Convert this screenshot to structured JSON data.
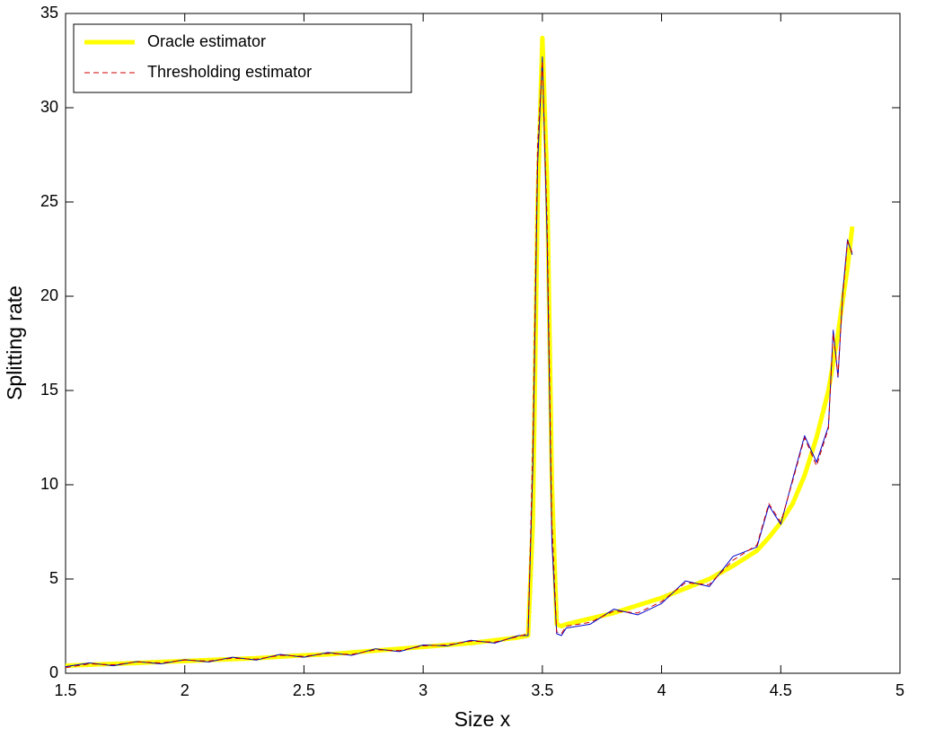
{
  "chart_data": {
    "type": "line",
    "x_label": "Size x",
    "y_label": "Splitting rate",
    "x": [
      1.5,
      1.6,
      1.7,
      1.8,
      1.9,
      2.0,
      2.1,
      2.2,
      2.3,
      2.4,
      2.5,
      2.6,
      2.7,
      2.8,
      2.9,
      3.0,
      3.1,
      3.2,
      3.3,
      3.4,
      3.44,
      3.46,
      3.48,
      3.5,
      3.52,
      3.54,
      3.56,
      3.58,
      3.6,
      3.7,
      3.8,
      3.9,
      4.0,
      4.1,
      4.2,
      4.3,
      4.4,
      4.45,
      4.5,
      4.55,
      4.6,
      4.65,
      4.7,
      4.72,
      4.74,
      4.76,
      4.78,
      4.8
    ],
    "series": [
      {
        "name": "Oracle estimator",
        "color": "#ffff00",
        "width": 5,
        "dashed": false,
        "values": [
          0.4,
          0.45,
          0.5,
          0.55,
          0.6,
          0.65,
          0.7,
          0.75,
          0.8,
          0.88,
          0.95,
          1.0,
          1.1,
          1.2,
          1.3,
          1.4,
          1.5,
          1.6,
          1.75,
          1.9,
          2.0,
          8,
          25,
          33.7,
          26,
          10,
          2.6,
          2.5,
          2.6,
          2.9,
          3.2,
          3.6,
          4.0,
          4.5,
          5.0,
          5.7,
          6.5,
          7.2,
          8.0,
          9.0,
          10.5,
          12.5,
          15,
          16.5,
          18,
          19.8,
          21.5,
          23.7
        ]
      },
      {
        "color": "#0000cc",
        "width": 1,
        "dashed": false,
        "values": [
          0.35,
          0.55,
          0.4,
          0.62,
          0.5,
          0.72,
          0.6,
          0.85,
          0.7,
          1.0,
          0.85,
          1.1,
          0.95,
          1.3,
          1.15,
          1.5,
          1.45,
          1.75,
          1.6,
          2.0,
          2.0,
          11,
          27,
          32.7,
          23,
          7,
          2.1,
          2.0,
          2.4,
          2.6,
          3.4,
          3.1,
          3.7,
          4.9,
          4.6,
          6.2,
          6.7,
          8.9,
          7.9,
          10.3,
          12.6,
          11.2,
          13.1,
          18.2,
          15.7,
          20.2,
          23.0,
          22.2
        ]
      },
      {
        "name": "Thresholding estimator",
        "color": "#cc0000",
        "width": 1,
        "dashed": true,
        "values": [
          0.3,
          0.5,
          0.45,
          0.6,
          0.55,
          0.7,
          0.65,
          0.8,
          0.75,
          0.95,
          0.9,
          1.05,
          1.0,
          1.25,
          1.2,
          1.45,
          1.5,
          1.7,
          1.65,
          1.95,
          2.1,
          12,
          28,
          32.5,
          24,
          8,
          2.2,
          2.1,
          2.5,
          2.7,
          3.3,
          3.2,
          3.8,
          4.8,
          4.7,
          6.0,
          6.8,
          9.0,
          8.0,
          10.2,
          12.5,
          11.0,
          13.0,
          18.0,
          15.8,
          20,
          22.9,
          22.3
        ]
      }
    ],
    "xlim": [
      1.5,
      5
    ],
    "ylim": [
      0,
      35
    ],
    "xticks": [
      1.5,
      2,
      2.5,
      3,
      3.5,
      4,
      4.5,
      5
    ],
    "yticks": [
      0,
      5,
      10,
      15,
      20,
      25,
      30,
      35
    ],
    "grid": false,
    "legend": "upper left"
  }
}
